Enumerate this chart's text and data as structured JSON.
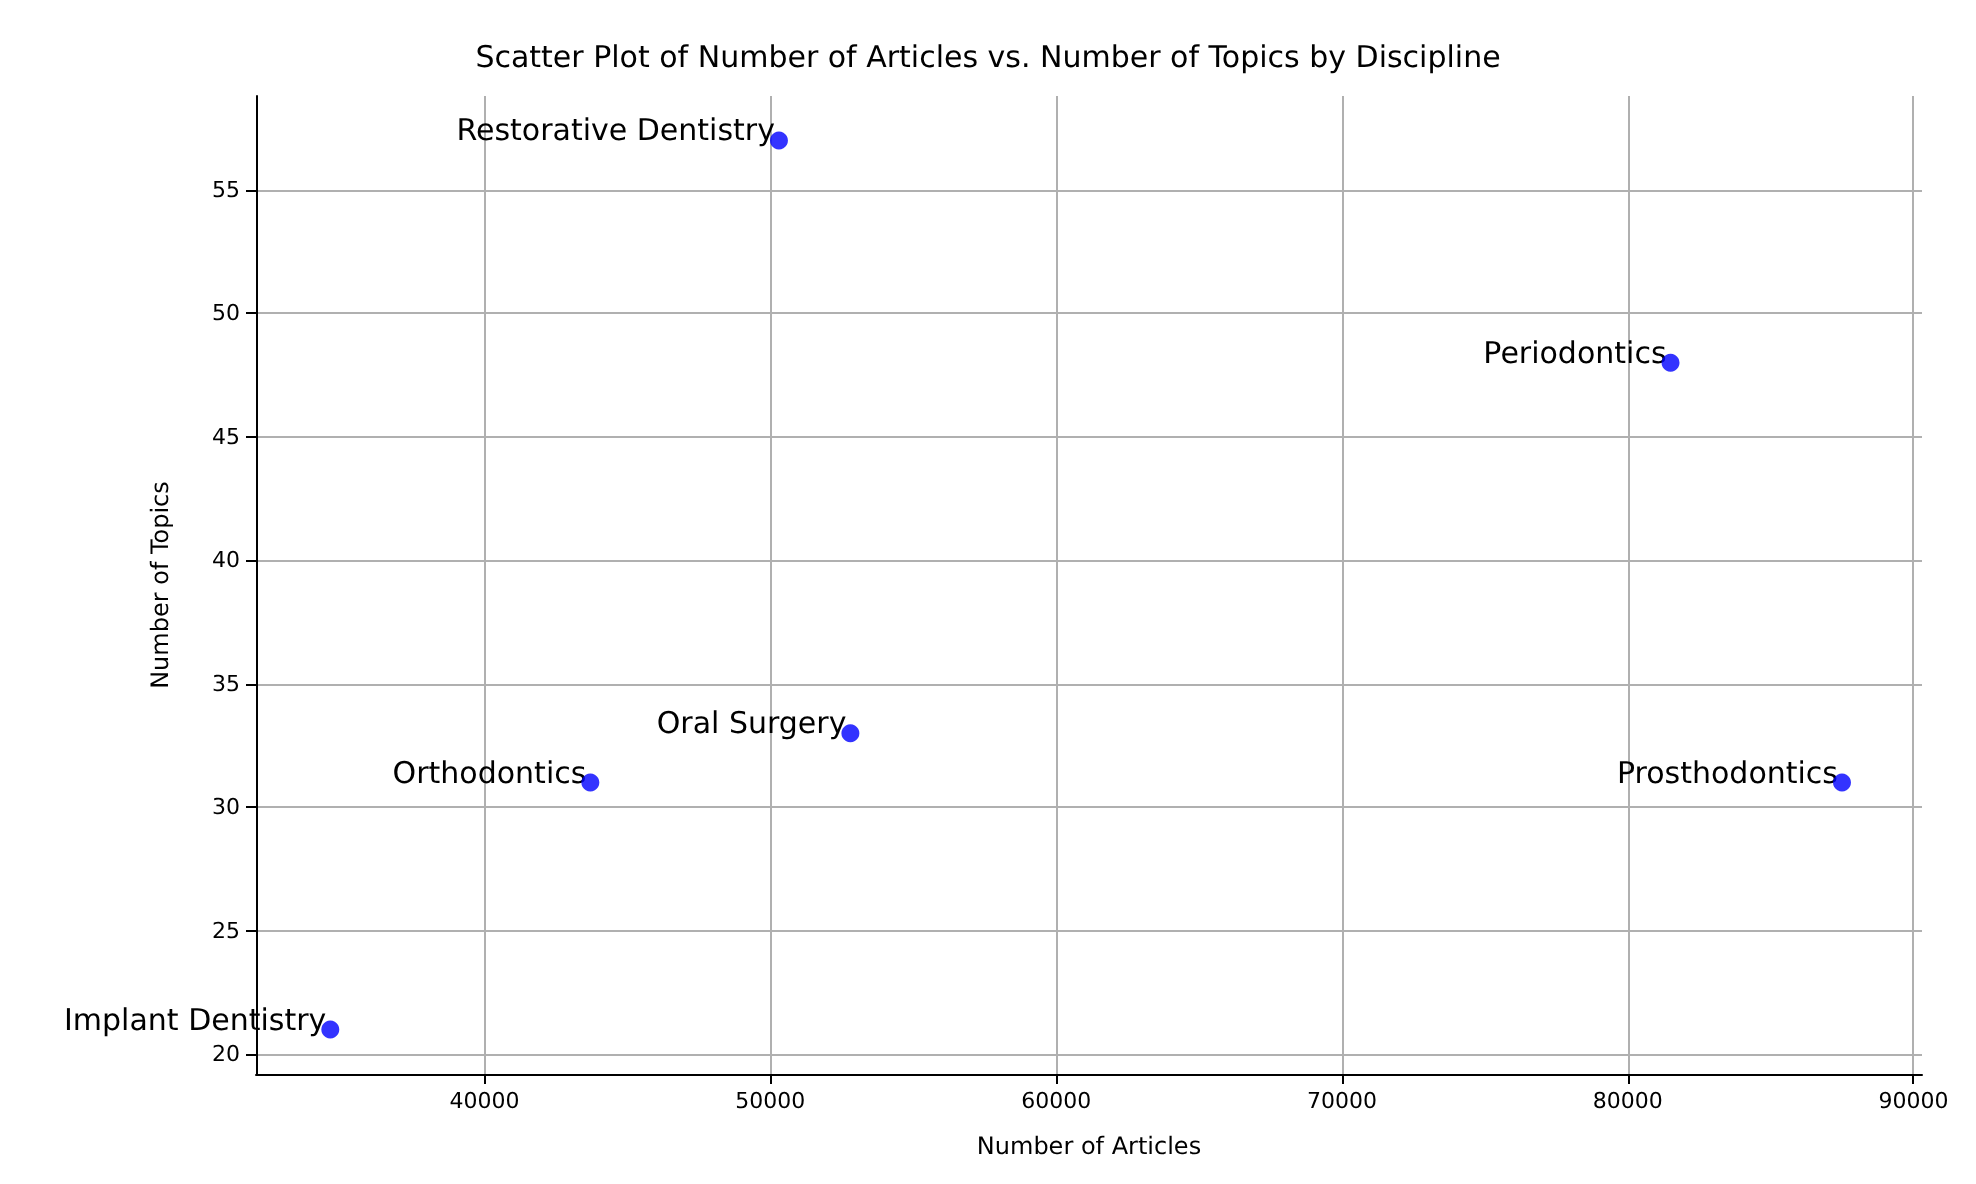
{
  "chart_data": {
    "type": "scatter",
    "title": "Scatter Plot of Number of Articles vs. Number of Topics by Discipline",
    "xlabel": "Number of Articles",
    "ylabel": "Number of Topics",
    "x": [
      50300,
      81500,
      52800,
      43700,
      87500,
      34600
    ],
    "series": [
      {
        "color": "#0000ff",
        "values": [
          57,
          48,
          33,
          31,
          31,
          21
        ]
      }
    ],
    "annotations": [
      {
        "text": "Restorative Dentistry",
        "x": 50300,
        "y": 57
      },
      {
        "text": "Periodontics",
        "x": 81500,
        "y": 48
      },
      {
        "text": "Oral Surgery",
        "x": 52800,
        "y": 33
      },
      {
        "text": "Orthodontics",
        "x": 43700,
        "y": 31
      },
      {
        "text": "Prosthodontics",
        "x": 87500,
        "y": 31
      },
      {
        "text": "Implant Dentistry",
        "x": 34600,
        "y": 21
      }
    ],
    "xlim": [
      32000,
      90300
    ],
    "xticks": [
      40000,
      50000,
      60000,
      70000,
      80000,
      90000
    ],
    "ylim": [
      19.2,
      58.8
    ],
    "yticks": [
      20,
      25,
      30,
      35,
      40,
      45,
      50,
      55
    ],
    "grid": true,
    "marker": "circle"
  }
}
